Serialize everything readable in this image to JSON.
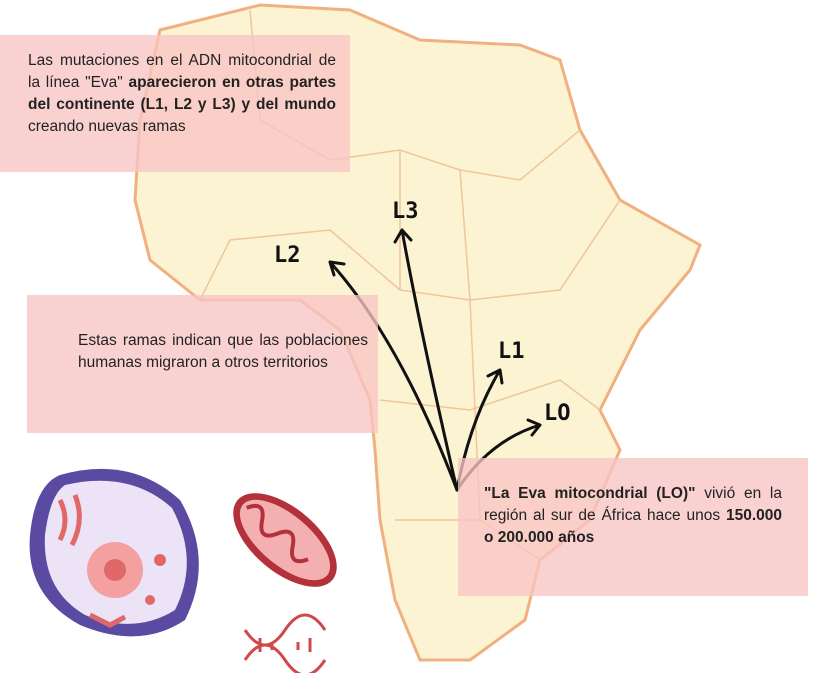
{
  "boxes": [
    {
      "segments": [
        {
          "text": "Las mutaciones en el ADN mitocondrial de la línea \"Eva\" ",
          "bold": false
        },
        {
          "text": "aparecieron en otras partes del continente (L1, L2 y L3) y del mundo",
          "bold": true
        },
        {
          "text": " creando nuevas ramas",
          "bold": false
        }
      ]
    },
    {
      "segments": [
        {
          "text": "Estas ramas indican que las poblaciones humanas migraron a otros territorios",
          "bold": false
        }
      ]
    },
    {
      "segments": [
        {
          "text": "\"La Eva mitocondrial (LO)\"",
          "bold": true
        },
        {
          "text": " vivió en la región al sur de África hace unos ",
          "bold": false
        },
        {
          "text": "150.000 o 200.000 años",
          "bold": true
        }
      ]
    }
  ],
  "labels": [
    "L3",
    "L2",
    "L1",
    "LO"
  ]
}
